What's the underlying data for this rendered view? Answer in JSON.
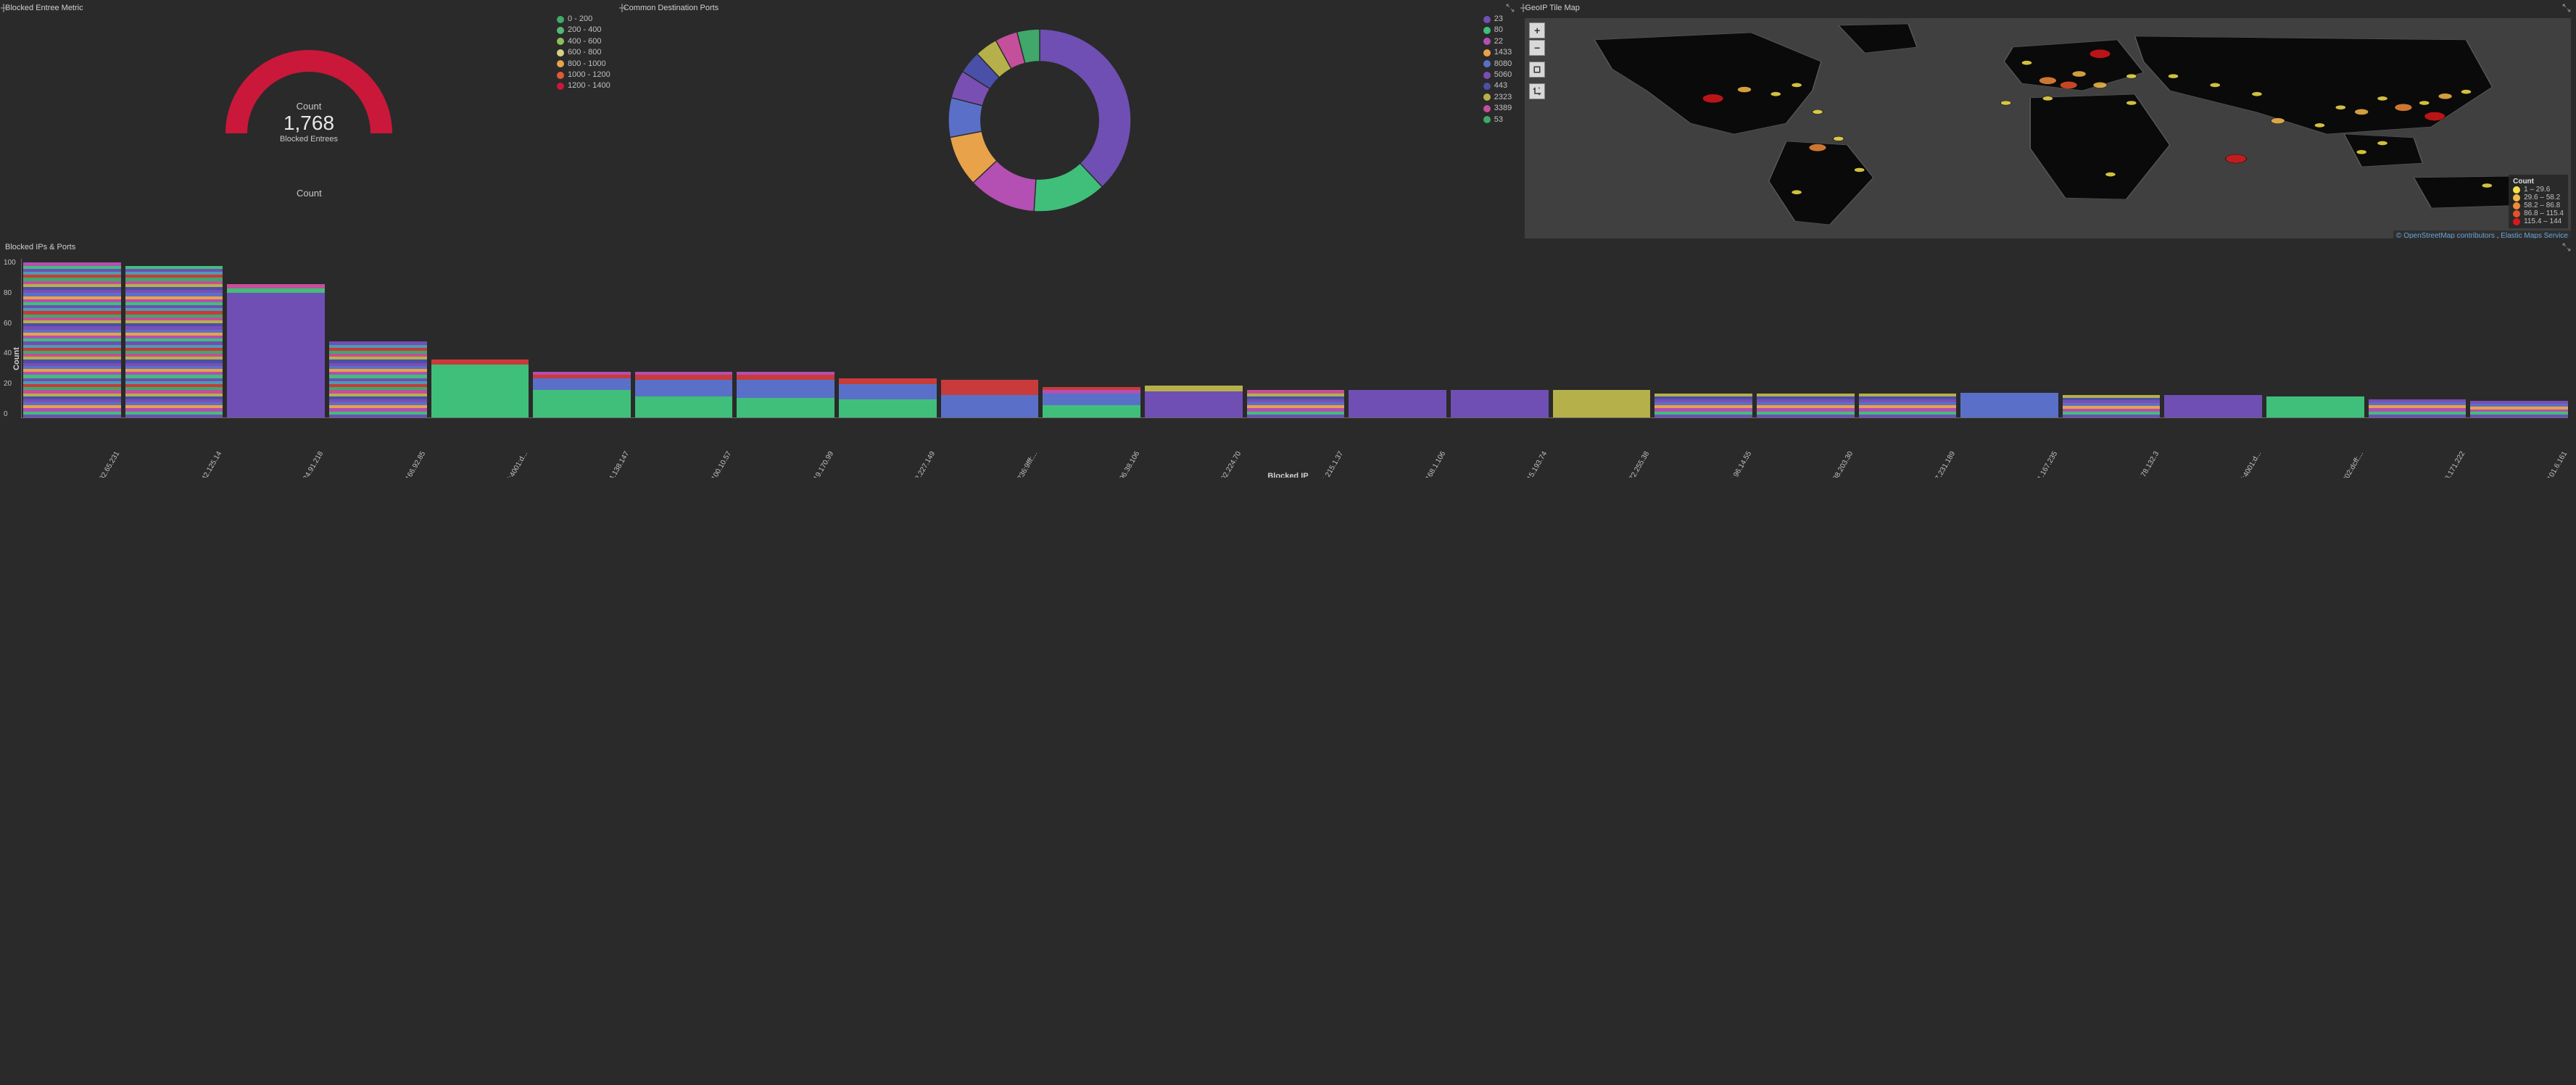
{
  "colors": {
    "bg": "#2a2a2a",
    "text": "#c0c0c0",
    "land": "#0a0a0a",
    "water": "#404040",
    "border": "#666666"
  },
  "gauge_panel": {
    "title": "Blocked Entree Metric",
    "count_label": "Count",
    "value": "1,768",
    "sub_label": "Blocked Entrees",
    "bottom_label": "Count",
    "arc_color": "#c9183a",
    "legend": [
      {
        "label": "0 - 200",
        "color": "#42aa6a"
      },
      {
        "label": "200 - 400",
        "color": "#56b870"
      },
      {
        "label": "400 - 600",
        "color": "#8ac15a"
      },
      {
        "label": "600 - 800",
        "color": "#d6d08a"
      },
      {
        "label": "800 - 1000",
        "color": "#e8a24a"
      },
      {
        "label": "1000 - 1200",
        "color": "#e05a3a"
      },
      {
        "label": "1200 - 1400",
        "color": "#c9183a"
      }
    ]
  },
  "donut_panel": {
    "title": "Common Destination Ports",
    "slices": [
      {
        "label": "23",
        "color": "#6f4fb3",
        "value": 38
      },
      {
        "label": "80",
        "color": "#3fbf7a",
        "value": 13
      },
      {
        "label": "22",
        "color": "#b44fb3",
        "value": 12
      },
      {
        "label": "1433",
        "color": "#e8a24a",
        "value": 9
      },
      {
        "label": "8080",
        "color": "#5a70c8",
        "value": 7
      },
      {
        "label": "5060",
        "color": "#7a4fb3",
        "value": 5
      },
      {
        "label": "443",
        "color": "#4a4fa8",
        "value": 4
      },
      {
        "label": "2323",
        "color": "#b6b04a",
        "value": 4
      },
      {
        "label": "3389",
        "color": "#c44f9a",
        "value": 4
      },
      {
        "label": "53",
        "color": "#3fa86a",
        "value": 4
      }
    ]
  },
  "map_panel": {
    "title": "GeoIP Tile Map",
    "legend_title": "Count",
    "legend": [
      {
        "label": "1 – 29.6",
        "color": "#f4e04a"
      },
      {
        "label": "29.6 – 58.2",
        "color": "#f4b84a"
      },
      {
        "label": "58.2 – 86.8",
        "color": "#f08a3a"
      },
      {
        "label": "86.8 – 115.4",
        "color": "#e8502a"
      },
      {
        "label": "115.4 – 144",
        "color": "#d8181a"
      }
    ],
    "attr_osm": "© OpenStreetMap contributors",
    "attr_elastic": "Elastic Maps Service",
    "points": [
      {
        "x": 18,
        "y": 36,
        "c": "#d8181a",
        "r": 6
      },
      {
        "x": 21,
        "y": 32,
        "c": "#f4b84a",
        "r": 4
      },
      {
        "x": 24,
        "y": 34,
        "c": "#f4e04a",
        "r": 3
      },
      {
        "x": 26,
        "y": 30,
        "c": "#f4e04a",
        "r": 3
      },
      {
        "x": 28,
        "y": 42,
        "c": "#f4e04a",
        "r": 3
      },
      {
        "x": 30,
        "y": 54,
        "c": "#f4e04a",
        "r": 3
      },
      {
        "x": 26,
        "y": 78,
        "c": "#f4e04a",
        "r": 3
      },
      {
        "x": 28,
        "y": 58,
        "c": "#f08a3a",
        "r": 5
      },
      {
        "x": 32,
        "y": 68,
        "c": "#f4e04a",
        "r": 3
      },
      {
        "x": 48,
        "y": 20,
        "c": "#f4e04a",
        "r": 3
      },
      {
        "x": 50,
        "y": 28,
        "c": "#f08a3a",
        "r": 5
      },
      {
        "x": 52,
        "y": 30,
        "c": "#e8502a",
        "r": 5
      },
      {
        "x": 53,
        "y": 25,
        "c": "#f4b84a",
        "r": 4
      },
      {
        "x": 55,
        "y": 16,
        "c": "#d8181a",
        "r": 6
      },
      {
        "x": 55,
        "y": 30,
        "c": "#f4b84a",
        "r": 4
      },
      {
        "x": 58,
        "y": 26,
        "c": "#f4e04a",
        "r": 3
      },
      {
        "x": 50,
        "y": 36,
        "c": "#f4e04a",
        "r": 3
      },
      {
        "x": 46,
        "y": 38,
        "c": "#f4e04a",
        "r": 3
      },
      {
        "x": 58,
        "y": 38,
        "c": "#f4e04a",
        "r": 3
      },
      {
        "x": 62,
        "y": 26,
        "c": "#f4e04a",
        "r": 3
      },
      {
        "x": 66,
        "y": 30,
        "c": "#f4e04a",
        "r": 3
      },
      {
        "x": 70,
        "y": 34,
        "c": "#f4e04a",
        "r": 3
      },
      {
        "x": 68,
        "y": 63,
        "c": "#d8181a",
        "r": 6
      },
      {
        "x": 72,
        "y": 46,
        "c": "#f4b84a",
        "r": 4
      },
      {
        "x": 76,
        "y": 48,
        "c": "#f4e04a",
        "r": 3
      },
      {
        "x": 78,
        "y": 40,
        "c": "#f4e04a",
        "r": 3
      },
      {
        "x": 80,
        "y": 42,
        "c": "#f4b84a",
        "r": 4
      },
      {
        "x": 82,
        "y": 36,
        "c": "#f4e04a",
        "r": 3
      },
      {
        "x": 84,
        "y": 40,
        "c": "#f08a3a",
        "r": 5
      },
      {
        "x": 86,
        "y": 38,
        "c": "#f4e04a",
        "r": 3
      },
      {
        "x": 87,
        "y": 44,
        "c": "#d8181a",
        "r": 6
      },
      {
        "x": 88,
        "y": 35,
        "c": "#f4b84a",
        "r": 4
      },
      {
        "x": 90,
        "y": 33,
        "c": "#f4e04a",
        "r": 3
      },
      {
        "x": 82,
        "y": 56,
        "c": "#f4e04a",
        "r": 3
      },
      {
        "x": 80,
        "y": 60,
        "c": "#f4e04a",
        "r": 3
      },
      {
        "x": 56,
        "y": 70,
        "c": "#f4e04a",
        "r": 3
      },
      {
        "x": 92,
        "y": 75,
        "c": "#f4e04a",
        "r": 3
      }
    ]
  },
  "bar_panel": {
    "title": "Blocked IPs & Ports",
    "y_label": "Count",
    "x_label": "Blocked IP",
    "y_max": 105,
    "y_ticks": [
      "0",
      "20",
      "40",
      "60",
      "80",
      "100"
    ],
    "seg_palette": [
      "#6f4fb3",
      "#3fbf7a",
      "#b44fb3",
      "#e8a24a",
      "#5a70c8",
      "#7a4fb3",
      "#4a4fa8",
      "#b6b04a",
      "#c44f9a",
      "#3fa86a",
      "#c93a3a",
      "#4f9ab3"
    ],
    "bars": [
      {
        "ip": "80.82.65.231",
        "total": 102,
        "striped": true
      },
      {
        "ip": "173.242.125.14",
        "total": 100,
        "striped": true
      },
      {
        "ip": "59.124.91.218",
        "total": 88,
        "segments": [
          {
            "c": "#6f4fb3",
            "v": 82
          },
          {
            "c": "#3fbf7a",
            "v": 3
          },
          {
            "c": "#c44f9a",
            "v": 3
          }
        ]
      },
      {
        "ip": "188.166.92.85",
        "total": 50,
        "striped": true
      },
      {
        "ip": "2601:cd:4001:d...",
        "total": 38,
        "segments": [
          {
            "c": "#3fbf7a",
            "v": 35
          },
          {
            "c": "#c93a3a",
            "v": 3
          }
        ]
      },
      {
        "ip": "190.94.138.147",
        "total": 30,
        "segments": [
          {
            "c": "#3fbf7a",
            "v": 18
          },
          {
            "c": "#5a70c8",
            "v": 8
          },
          {
            "c": "#c93a3a",
            "v": 2
          },
          {
            "c": "#b44fb3",
            "v": 2
          }
        ]
      },
      {
        "ip": "191.100.10.57",
        "total": 30,
        "segments": [
          {
            "c": "#3fbf7a",
            "v": 14
          },
          {
            "c": "#5a70c8",
            "v": 11
          },
          {
            "c": "#c93a3a",
            "v": 3
          },
          {
            "c": "#b44fb3",
            "v": 2
          }
        ]
      },
      {
        "ip": "203.219.170.99",
        "total": 30,
        "segments": [
          {
            "c": "#3fbf7a",
            "v": 13
          },
          {
            "c": "#5a70c8",
            "v": 12
          },
          {
            "c": "#c93a3a",
            "v": 3
          },
          {
            "c": "#b44fb3",
            "v": 2
          }
        ]
      },
      {
        "ip": "91.132.227.149",
        "total": 26,
        "segments": [
          {
            "c": "#3fbf7a",
            "v": 12
          },
          {
            "c": "#5a70c8",
            "v": 10
          },
          {
            "c": "#c93a3a",
            "v": 4
          }
        ]
      },
      {
        "ip": "fe80::a236:9fff:...",
        "total": 25,
        "segments": [
          {
            "c": "#5a70c8",
            "v": 15
          },
          {
            "c": "#c93a3a",
            "v": 10
          }
        ]
      },
      {
        "ip": "183.196.38.106",
        "total": 20,
        "segments": [
          {
            "c": "#3fbf7a",
            "v": 8
          },
          {
            "c": "#5a70c8",
            "v": 8
          },
          {
            "c": "#b44fb3",
            "v": 2
          },
          {
            "c": "#c93a3a",
            "v": 2
          }
        ]
      },
      {
        "ip": "27.202.224.70",
        "total": 21,
        "segments": [
          {
            "c": "#6f4fb3",
            "v": 17
          },
          {
            "c": "#b6b04a",
            "v": 4
          }
        ]
      },
      {
        "ip": "95.215.1.37",
        "total": 18,
        "striped": true
      },
      {
        "ip": "192.168.1.106",
        "total": 18,
        "segments": [
          {
            "c": "#6f4fb3",
            "v": 18
          }
        ]
      },
      {
        "ip": "51.15.193.74",
        "total": 18,
        "segments": [
          {
            "c": "#6f4fb3",
            "v": 18
          }
        ]
      },
      {
        "ip": "15.172.255.38",
        "total": 18,
        "segments": [
          {
            "c": "#b6b04a",
            "v": 18
          }
        ]
      },
      {
        "ip": "185.96.14.55",
        "total": 16,
        "striped": true
      },
      {
        "ip": "51.88.203.30",
        "total": 16,
        "striped": true
      },
      {
        "ip": "92.237.231.189",
        "total": 16,
        "striped": true
      },
      {
        "ip": "191.101.167.235",
        "total": 16,
        "segments": [
          {
            "c": "#5a70c8",
            "v": 16
          }
        ]
      },
      {
        "ip": "103.78.132.3",
        "total": 15,
        "striped": true
      },
      {
        "ip": "2601:cd:4001:d...",
        "total": 15,
        "segments": [
          {
            "c": "#6f4fb3",
            "v": 15
          }
        ]
      },
      {
        "ip": "fe80::a202:dcff:...",
        "total": 14,
        "segments": [
          {
            "c": "#3fbf7a",
            "v": 14
          }
        ]
      },
      {
        "ip": "89.248.171.222",
        "total": 12,
        "striped": true
      },
      {
        "ip": "5.101.6.161",
        "total": 11,
        "striped": true
      }
    ]
  }
}
